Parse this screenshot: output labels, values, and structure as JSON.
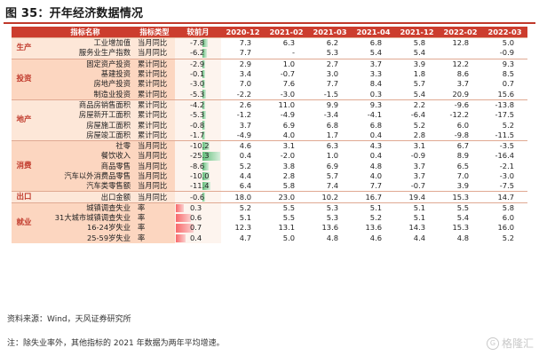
{
  "title": "图 35：开年经济数据情况",
  "header": {
    "metric": "指标名称",
    "type": "指标类型",
    "mom": "较前月",
    "periods": [
      "2020-12",
      "2021-02",
      "2021-03",
      "2021-04",
      "2021-12",
      "2022-02",
      "2022-03"
    ]
  },
  "groups": [
    {
      "label": "生产",
      "rows": [
        {
          "name": "工业增加值",
          "type": "当月同比",
          "mom": "-7.8",
          "values": [
            "7.3",
            "6.3",
            "6.2",
            "6.8",
            "5.8",
            "12.8",
            "5.0"
          ]
        },
        {
          "name": "服务业生产指数",
          "type": "当月同比",
          "mom": "-6.2",
          "values": [
            "7.7",
            "-",
            "5.3",
            "5.4",
            "5.4",
            "",
            "-0.9"
          ]
        }
      ]
    },
    {
      "label": "投资",
      "rows": [
        {
          "name": "固定资产投资",
          "type": "累计同比",
          "mom": "-2.9",
          "values": [
            "2.9",
            "1.0",
            "2.7",
            "3.7",
            "3.9",
            "12.2",
            "9.3"
          ]
        },
        {
          "name": "基建投资",
          "type": "累计同比",
          "mom": "-0.1",
          "values": [
            "3.4",
            "-0.7",
            "3.0",
            "3.3",
            "1.8",
            "8.6",
            "8.5"
          ]
        },
        {
          "name": "房地产投资",
          "type": "累计同比",
          "mom": "-3.0",
          "values": [
            "7.0",
            "7.6",
            "7.7",
            "8.4",
            "5.7",
            "3.7",
            "0.7"
          ]
        },
        {
          "name": "制造业投资",
          "type": "累计同比",
          "mom": "-5.3",
          "values": [
            "-2.2",
            "-3.0",
            "-1.5",
            "0.3",
            "5.4",
            "20.9",
            "15.6"
          ]
        }
      ]
    },
    {
      "label": "地产",
      "rows": [
        {
          "name": "商品房销售面积",
          "type": "累计同比",
          "mom": "-4.2",
          "values": [
            "2.6",
            "11.0",
            "9.9",
            "9.3",
            "2.2",
            "-9.6",
            "-13.8"
          ]
        },
        {
          "name": "房屋新开工面积",
          "type": "累计同比",
          "mom": "-5.3",
          "values": [
            "-1.2",
            "-4.9",
            "-3.4",
            "-4.1",
            "-6.4",
            "-12.2",
            "-17.5"
          ]
        },
        {
          "name": "房屋施工面积",
          "type": "累计同比",
          "mom": "-0.8",
          "values": [
            "3.7",
            "6.9",
            "6.8",
            "6.8",
            "5.2",
            "6.0",
            "5.2"
          ]
        },
        {
          "name": "房屋竣工面积",
          "type": "累计同比",
          "mom": "-1.7",
          "values": [
            "-4.9",
            "4.0",
            "1.7",
            "0.4",
            "2.8",
            "-9.8",
            "-11.5"
          ]
        }
      ]
    },
    {
      "label": "消费",
      "rows": [
        {
          "name": "社零",
          "type": "当月同比",
          "mom": "-10.2",
          "values": [
            "4.6",
            "3.1",
            "6.3",
            "4.3",
            "3.1",
            "6.7",
            "-3.5"
          ]
        },
        {
          "name": "餐饮收入",
          "type": "当月同比",
          "mom": "-25.3",
          "values": [
            "0.4",
            "-2.0",
            "1.0",
            "0.4",
            "-0.9",
            "8.9",
            "-16.4"
          ]
        },
        {
          "name": "商品零售",
          "type": "当月同比",
          "mom": "-8.6",
          "values": [
            "5.2",
            "3.8",
            "6.9",
            "4.8",
            "3.7",
            "6.5",
            "-2.1"
          ]
        },
        {
          "name": "汽车以外消费品零售",
          "type": "当月同比",
          "mom": "-10.0",
          "values": [
            "4.4",
            "2.8",
            "5.7",
            "4.0",
            "3.7",
            "7.0",
            "-3.0"
          ]
        },
        {
          "name": "汽车类零售额",
          "type": "当月同比",
          "mom": "-11.4",
          "values": [
            "6.4",
            "5.8",
            "7.4",
            "7.7",
            "-0.7",
            "3.9",
            "-7.5"
          ]
        }
      ]
    },
    {
      "label": "出口",
      "rows": [
        {
          "name": "出口金额",
          "type": "当月同比",
          "mom": "-0.6",
          "values": [
            "18.0",
            "23.0",
            "10.2",
            "16.7",
            "19.4",
            "15.3",
            "14.7"
          ]
        }
      ]
    },
    {
      "label": "就业",
      "rows": [
        {
          "name": "城镇调查失业",
          "type": "率",
          "mom": "0.3",
          "values": [
            "5.2",
            "5.5",
            "5.3",
            "5.1",
            "5.1",
            "5.5",
            "5.8"
          ]
        },
        {
          "name": "31大城市城镇调查失业",
          "type": "率",
          "mom": "0.6",
          "values": [
            "5.1",
            "5.5",
            "5.3",
            "5.2",
            "5.1",
            "5.4",
            "6.0"
          ]
        },
        {
          "name": "16-24岁失业",
          "type": "率",
          "mom": "0.7",
          "values": [
            "12.3",
            "13.1",
            "13.6",
            "13.6",
            "14.3",
            "15.3",
            "16.0"
          ]
        },
        {
          "name": "25-59岁失业",
          "type": "率",
          "mom": "0.4",
          "values": [
            "4.7",
            "5.0",
            "4.8",
            "4.6",
            "4.4",
            "4.8",
            "5.2"
          ]
        }
      ]
    }
  ],
  "source": "资料来源：Wind，天风证券研究所",
  "note": "注：除失业率外，其他指标的 2021 年数据为两年平均增速。",
  "watermark": "格隆汇",
  "colors": {
    "header": "#cc3d2e",
    "band_light": "#fde7d8",
    "band_dark": "#fcd6c0",
    "bar_negative": "#63be7b",
    "bar_positive": "#f8696b"
  }
}
